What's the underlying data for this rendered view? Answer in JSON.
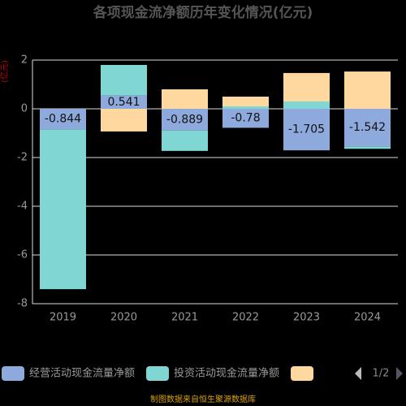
{
  "chart_data": {
    "type": "stacked_bar",
    "title": "各项现金流净额历年变化情况(亿元)",
    "y_label": "(亿元)",
    "categories": [
      "2019",
      "2020",
      "2021",
      "2022",
      "2023",
      "2024"
    ],
    "series": [
      {
        "name": "经营活动现金流量净额",
        "color": "#8ea9db",
        "values": [
          -0.844,
          0.541,
          -0.889,
          -0.78,
          -1.705,
          -1.542
        ]
      },
      {
        "name": "投资活动现金流量净额",
        "color": "#7fd6d3",
        "values": [
          -6.56,
          1.26,
          -0.84,
          0.1,
          0.3,
          -0.1
        ]
      },
      {
        "name": null,
        "color": "#ffd8a0",
        "values": [
          0,
          -0.93,
          0.8,
          0.4,
          1.17,
          1.53
        ]
      }
    ],
    "data_labels_series": 0,
    "ylim": [
      -8,
      2
    ],
    "yticks": [
      -8,
      -6,
      -4,
      -2,
      0,
      2
    ],
    "grid": true,
    "legend_page": "1/2",
    "footer": "制图数据来自恒生聚源数据库"
  }
}
